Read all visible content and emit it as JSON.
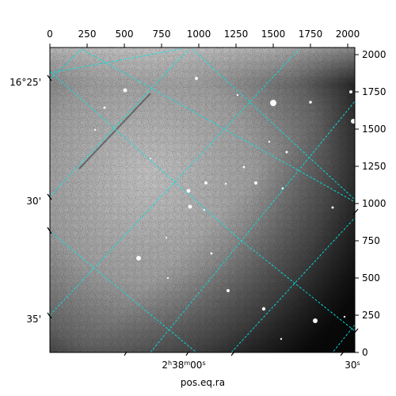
{
  "figure": {
    "x_axis_bottom_label": "pos.eq.ra",
    "ra_tick_labels": [
      {
        "hm": "2",
        "h_mark": "h",
        "m": "38",
        "m_mark": "m",
        "s": "00",
        "s_mark": "s"
      },
      {
        "s": "30",
        "s_mark": "s"
      }
    ],
    "dec_tick_labels": [
      "16°25'",
      "30'",
      "35'"
    ],
    "pixel_x_tick_labels": [
      "0",
      "250",
      "500",
      "750",
      "1000",
      "1250",
      "1500",
      "1750",
      "2000"
    ],
    "pixel_y_tick_labels": [
      "0",
      "250",
      "500",
      "750",
      "1000",
      "1250",
      "1500",
      "1750",
      "2000"
    ],
    "grid_color": "#00e5e5",
    "image_colormap": "grayscale"
  }
}
